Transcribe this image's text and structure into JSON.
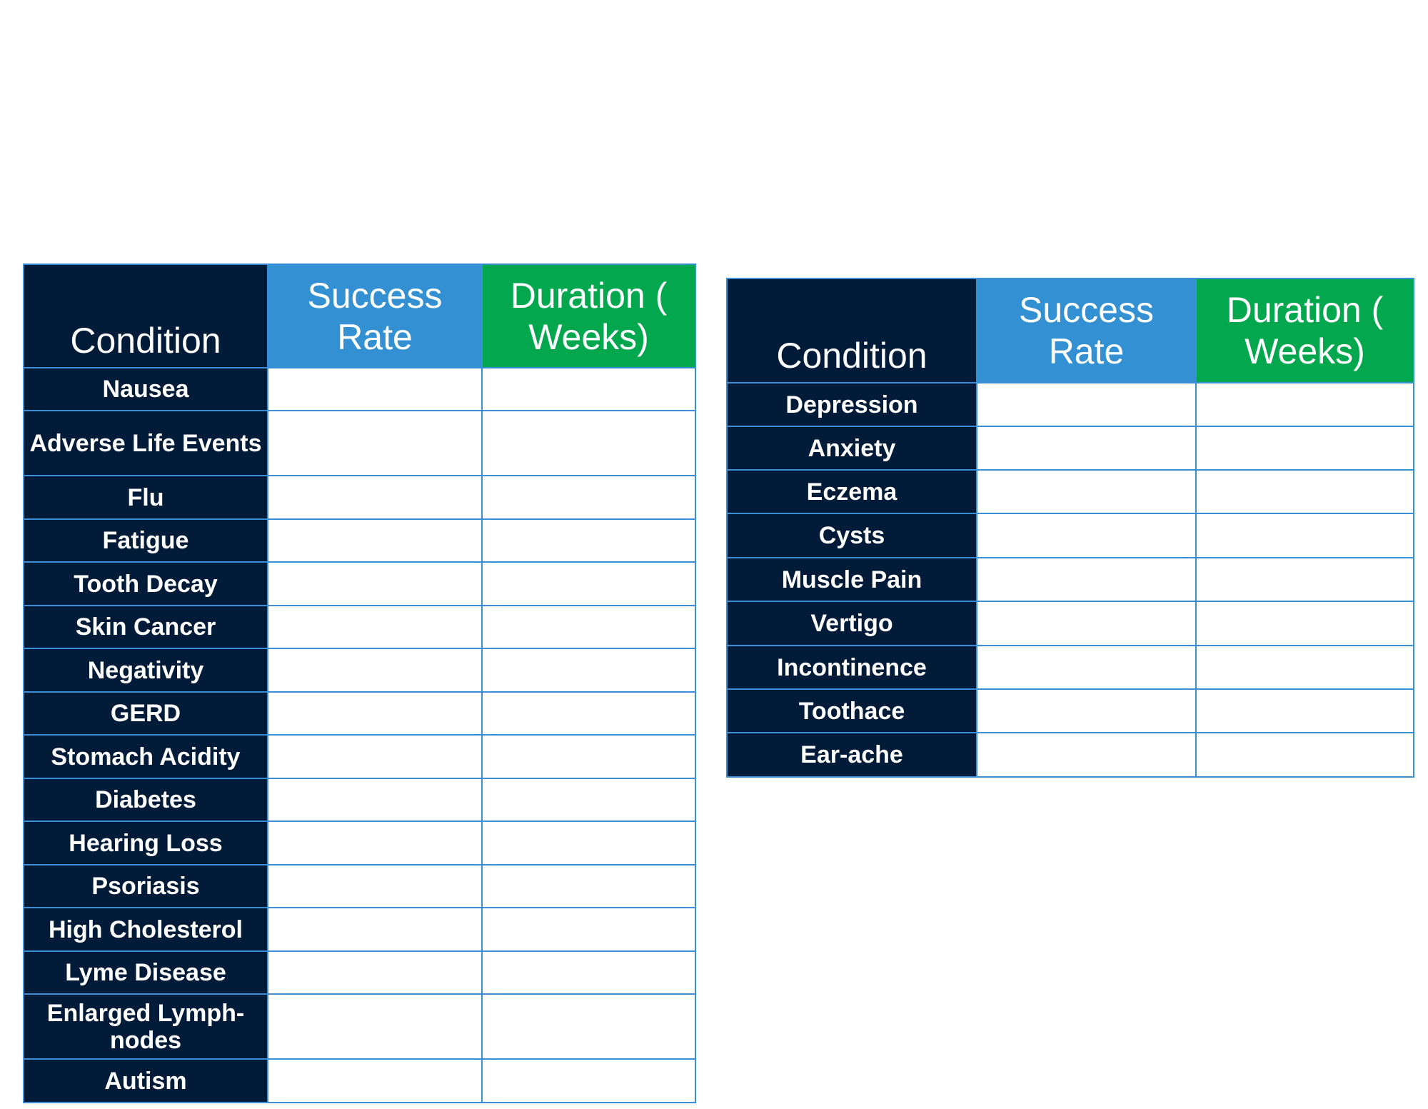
{
  "colors": {
    "navy": "#021b38",
    "blue": "#3391d3",
    "green": "#03a84e",
    "grid": "#3a8fd6"
  },
  "left_table": {
    "header": {
      "condition": "Condition",
      "success_rate": "Success Rate",
      "duration": "Duration ( Weeks)"
    },
    "rows": [
      "Nausea",
      "Adverse Life Events",
      "Flu",
      "Fatigue",
      "Tooth Decay",
      "Skin Cancer",
      "Negativity",
      "GERD",
      "Stomach Acidity",
      "Diabetes",
      "Hearing Loss",
      "Psoriasis",
      "High Cholesterol",
      "Lyme Disease",
      "Enlarged Lymph-nodes",
      "Autism"
    ]
  },
  "right_table": {
    "header": {
      "condition": "Condition",
      "success_rate": "Success Rate",
      "duration": "Duration ( Weeks)"
    },
    "rows": [
      "Depression",
      "Anxiety",
      "Eczema",
      "Cysts",
      "Muscle Pain",
      "Vertigo",
      "Incontinence",
      "Toothace",
      "Ear-ache"
    ]
  }
}
